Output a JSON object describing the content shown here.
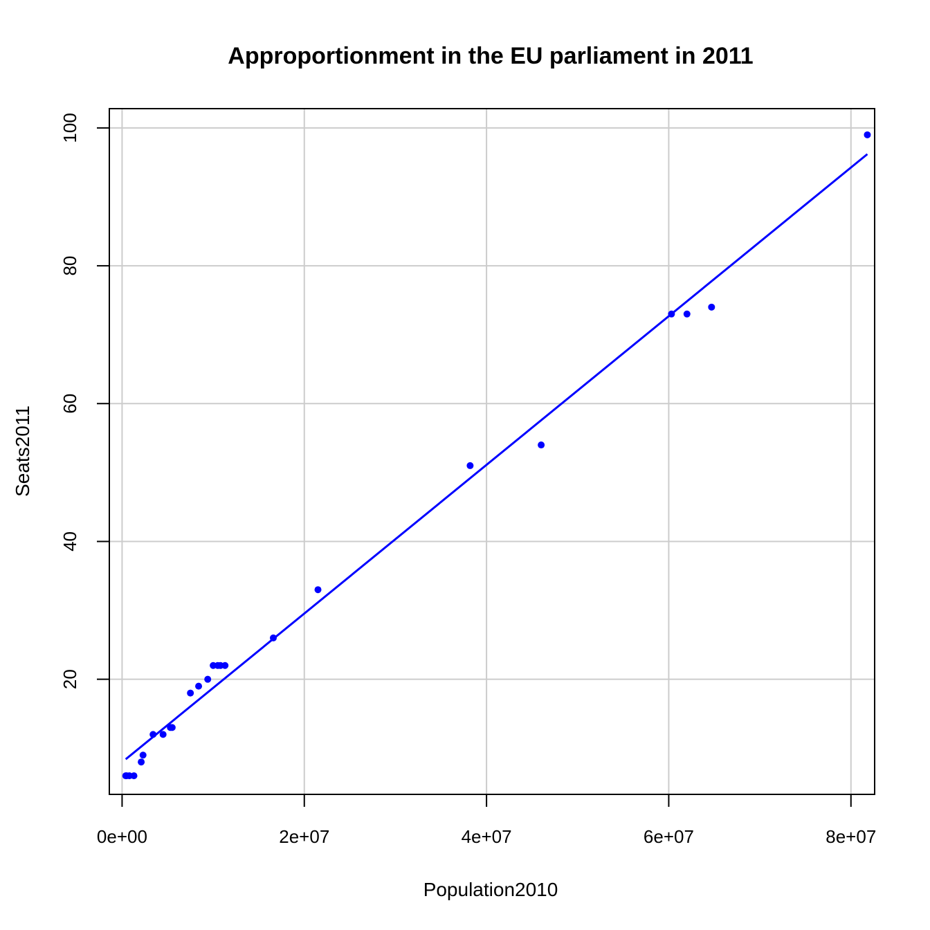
{
  "chart_data": {
    "type": "scatter",
    "title": "Approportionment in the EU parliament in 2011",
    "xlabel": "Population2010",
    "ylabel": "Seats2011",
    "xlim": [
      -1400000,
      82600000
    ],
    "ylim": [
      3.3,
      102.8
    ],
    "x_ticks": [
      {
        "value": 0,
        "label": "0e+00"
      },
      {
        "value": 20000000,
        "label": "2e+07"
      },
      {
        "value": 40000000,
        "label": "4e+07"
      },
      {
        "value": 60000000,
        "label": "6e+07"
      },
      {
        "value": 80000000,
        "label": "8e+07"
      }
    ],
    "y_ticks": [
      {
        "value": 20,
        "label": "20"
      },
      {
        "value": 40,
        "label": "40"
      },
      {
        "value": 60,
        "label": "60"
      },
      {
        "value": 80,
        "label": "80"
      },
      {
        "value": 100,
        "label": "100"
      }
    ],
    "grid": true,
    "colors": {
      "points": "#0000ff",
      "fit_line": "#0000ff",
      "grid": "#cccccc",
      "axes": "#000000"
    },
    "points": [
      {
        "x": 400000,
        "y": 6
      },
      {
        "x": 500000,
        "y": 6
      },
      {
        "x": 800000,
        "y": 6
      },
      {
        "x": 1300000,
        "y": 6
      },
      {
        "x": 2100000,
        "y": 8
      },
      {
        "x": 2300000,
        "y": 9
      },
      {
        "x": 3400000,
        "y": 12
      },
      {
        "x": 4500000,
        "y": 12
      },
      {
        "x": 5300000,
        "y": 13
      },
      {
        "x": 5500000,
        "y": 13
      },
      {
        "x": 7500000,
        "y": 18
      },
      {
        "x": 8400000,
        "y": 19
      },
      {
        "x": 9400000,
        "y": 20
      },
      {
        "x": 10000000,
        "y": 22
      },
      {
        "x": 10500000,
        "y": 22
      },
      {
        "x": 10800000,
        "y": 22
      },
      {
        "x": 11300000,
        "y": 22
      },
      {
        "x": 16600000,
        "y": 26
      },
      {
        "x": 21500000,
        "y": 33
      },
      {
        "x": 38200000,
        "y": 51
      },
      {
        "x": 46000000,
        "y": 54
      },
      {
        "x": 60300000,
        "y": 73
      },
      {
        "x": 62000000,
        "y": 73
      },
      {
        "x": 64700000,
        "y": 74
      },
      {
        "x": 81800000,
        "y": 99
      }
    ],
    "fit_line": {
      "x": [
        400000,
        81800000
      ],
      "y": [
        8.4,
        96.2
      ]
    }
  }
}
